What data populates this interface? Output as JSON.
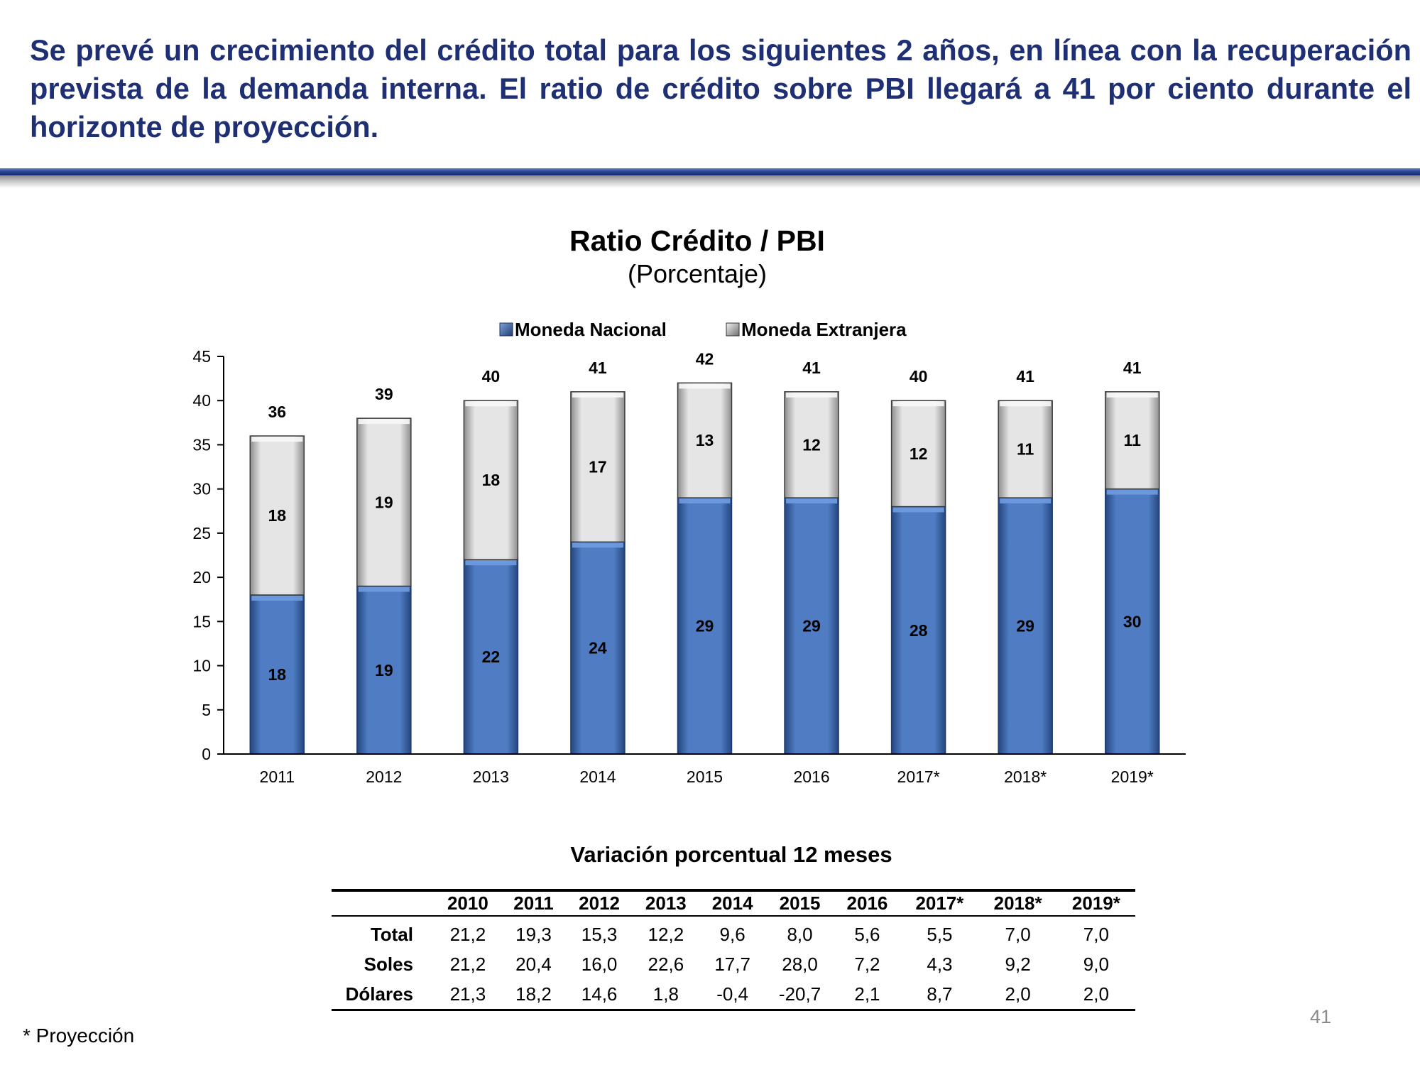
{
  "headline": "Se prevé un crecimiento del crédito total para los siguientes 2 años, en línea con la recuperación prevista de la demanda interna. El ratio de crédito sobre PBI llegará a  41 por ciento durante el horizonte de proyección.",
  "chart_data": {
    "type": "bar",
    "stacked": true,
    "title": "Ratio Crédito / PBI",
    "subtitle": "(Porcentaje)",
    "categories": [
      "2011",
      "2012",
      "2013",
      "2014",
      "2015",
      "2016",
      "2017*",
      "2018*",
      "2019*"
    ],
    "series": [
      {
        "name": "Moneda Nacional",
        "values": [
          18,
          19,
          22,
          24,
          29,
          29,
          28,
          29,
          30
        ],
        "color": "#4f7cc2"
      },
      {
        "name": "Moneda Extranjera",
        "values": [
          18,
          19,
          18,
          17,
          13,
          12,
          12,
          11,
          11
        ],
        "color": "#e3e3e3"
      }
    ],
    "totals": [
      36,
      39,
      40,
      41,
      42,
      41,
      40,
      41,
      41
    ],
    "ylim": [
      0,
      45
    ],
    "yticks": [
      0,
      5,
      10,
      15,
      20,
      25,
      30,
      35,
      40,
      45
    ],
    "legend_position": "top-center",
    "grid": false
  },
  "table": {
    "title": "Variación porcentual 12 meses",
    "columns": [
      "2010",
      "2011",
      "2012",
      "2013",
      "2014",
      "2015",
      "2016",
      "2017*",
      "2018*",
      "2019*"
    ],
    "rows": [
      {
        "label": "Total",
        "values": [
          "21,2",
          "19,3",
          "15,3",
          "12,2",
          "9,6",
          "8,0",
          "5,6",
          "5,5",
          "7,0",
          "7,0"
        ]
      },
      {
        "label": "Soles",
        "values": [
          "21,2",
          "20,4",
          "16,0",
          "22,6",
          "17,7",
          "28,0",
          "7,2",
          "4,3",
          "9,2",
          "9,0"
        ]
      },
      {
        "label": "Dólares",
        "values": [
          "21,3",
          "18,2",
          "14,6",
          "1,8",
          "-0,4",
          "-20,7",
          "2,1",
          "8,7",
          "2,0",
          "2,0"
        ]
      }
    ]
  },
  "footnote": "* Proyección",
  "page_number": "41"
}
